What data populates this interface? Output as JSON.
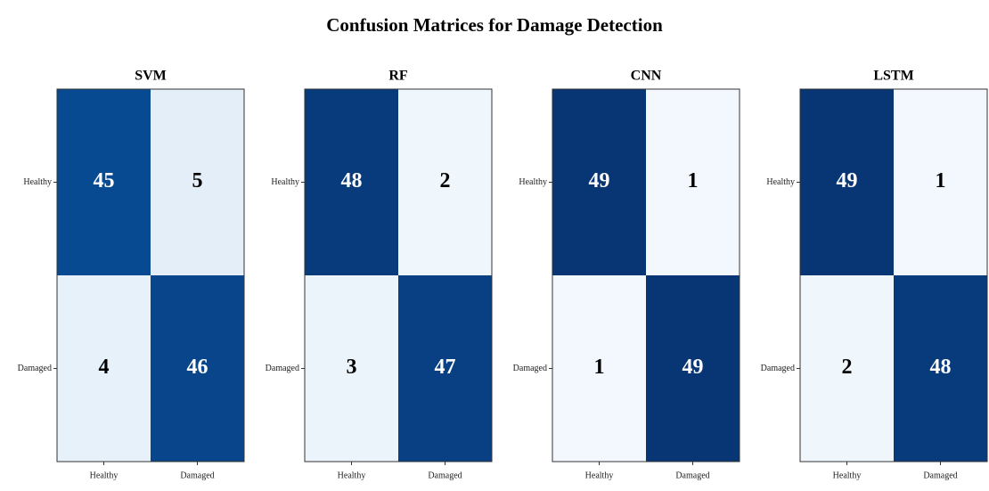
{
  "title": "Confusion Matrices for Damage Detection",
  "chart_data": [
    {
      "type": "heatmap",
      "title": "SVM",
      "x_categories": [
        "Healthy",
        "Damaged"
      ],
      "y_categories": [
        "Healthy",
        "Damaged"
      ],
      "values": [
        [
          45,
          5
        ],
        [
          4,
          46
        ]
      ],
      "colormap": "Blues",
      "clim": [
        0,
        50
      ]
    },
    {
      "type": "heatmap",
      "title": "RF",
      "x_categories": [
        "Healthy",
        "Damaged"
      ],
      "y_categories": [
        "Healthy",
        "Damaged"
      ],
      "values": [
        [
          48,
          2
        ],
        [
          3,
          47
        ]
      ],
      "colormap": "Blues",
      "clim": [
        0,
        50
      ]
    },
    {
      "type": "heatmap",
      "title": "CNN",
      "x_categories": [
        "Healthy",
        "Damaged"
      ],
      "y_categories": [
        "Healthy",
        "Damaged"
      ],
      "values": [
        [
          49,
          1
        ],
        [
          1,
          49
        ]
      ],
      "colormap": "Blues",
      "clim": [
        0,
        50
      ]
    },
    {
      "type": "heatmap",
      "title": "LSTM",
      "x_categories": [
        "Healthy",
        "Damaged"
      ],
      "y_categories": [
        "Healthy",
        "Damaged"
      ],
      "values": [
        [
          49,
          1
        ],
        [
          2,
          48
        ]
      ],
      "colormap": "Blues",
      "clim": [
        0,
        50
      ]
    }
  ]
}
